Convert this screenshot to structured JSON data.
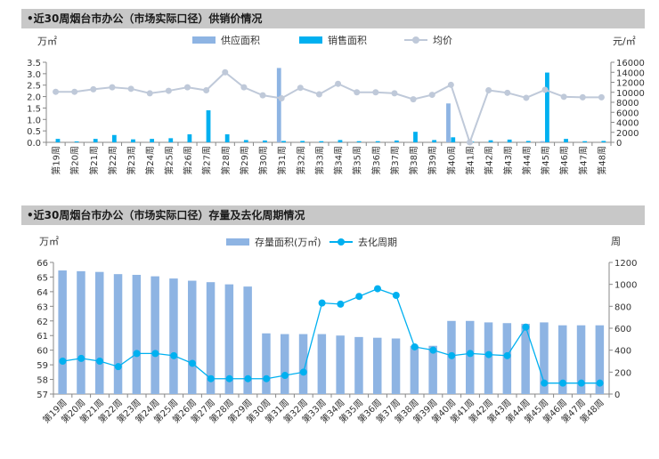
{
  "chart_data": [
    {
      "type": "bar",
      "title": "•近30周烟台市办公（市场实际口径）供销价情况",
      "left_unit": "万㎡",
      "right_unit": "元/㎡",
      "categories": [
        "第19周",
        "第20周",
        "第21周",
        "第22周",
        "第23周",
        "第24周",
        "第25周",
        "第26周",
        "第27周",
        "第28周",
        "第29周",
        "第30周",
        "第31周",
        "第32周",
        "第33周",
        "第34周",
        "第35周",
        "第36周",
        "第37周",
        "第38周",
        "第39周",
        "第40周",
        "第41周",
        "第42周",
        "第43周",
        "第44周",
        "第45周",
        "第46周",
        "第47周",
        "第48周"
      ],
      "left_ticks": [
        "0.0",
        "0.5",
        "1.0",
        "1.5",
        "2.0",
        "2.5",
        "3.0",
        "3.5"
      ],
      "right_ticks": [
        "0",
        "2000",
        "4000",
        "6000",
        "8000",
        "10000",
        "12000",
        "14000",
        "16000"
      ],
      "ylim_left": [
        0,
        3.5
      ],
      "ylim_right": [
        0,
        16000
      ],
      "grid": false,
      "legend_position": "top-center",
      "series": [
        {
          "name": "供应面积",
          "kind": "bar",
          "axis": "left",
          "color": "#8eb4e3",
          "values": [
            0,
            0,
            0,
            0,
            0,
            0,
            0,
            0,
            0,
            0,
            0,
            0,
            3.25,
            0,
            0,
            0,
            0,
            0,
            0,
            0,
            0,
            1.7,
            0,
            0,
            0,
            0,
            0.05,
            0,
            0,
            0
          ]
        },
        {
          "name": "销售面积",
          "kind": "bar",
          "axis": "left",
          "color": "#00b0f0",
          "values": [
            0.15,
            0.04,
            0.15,
            0.32,
            0.13,
            0.15,
            0.18,
            0.35,
            1.4,
            0.35,
            0.1,
            0.08,
            0.06,
            0.06,
            0.05,
            0.1,
            0.05,
            0.05,
            0.08,
            0.46,
            0.1,
            0.22,
            0.03,
            0.09,
            0.12,
            0.06,
            3.05,
            0.15,
            0.05,
            0.06
          ]
        },
        {
          "name": "均价",
          "kind": "line",
          "axis": "right",
          "color": "#bfc9d9",
          "values": [
            10100,
            10100,
            10600,
            11000,
            10700,
            9800,
            10300,
            11000,
            10400,
            14000,
            11000,
            9400,
            8800,
            10900,
            9600,
            11700,
            10000,
            10000,
            9800,
            8600,
            9500,
            11500,
            0,
            10400,
            9900,
            8900,
            10500,
            9100,
            9000,
            9000
          ]
        }
      ]
    },
    {
      "type": "bar",
      "title": "•近30周烟台市办公（市场实际口径）存量及去化周期情况",
      "left_unit": "万㎡",
      "right_unit": "周",
      "categories": [
        "第19周",
        "第20周",
        "第21周",
        "第22周",
        "第23周",
        "第24周",
        "第25周",
        "第26周",
        "第27周",
        "第28周",
        "第29周",
        "第30周",
        "第31周",
        "第32周",
        "第33周",
        "第34周",
        "第35周",
        "第36周",
        "第37周",
        "第38周",
        "第39周",
        "第40周",
        "第41周",
        "第42周",
        "第43周",
        "第44周",
        "第45周",
        "第46周",
        "第47周",
        "第48周"
      ],
      "left_ticks": [
        "57",
        "58",
        "59",
        "60",
        "61",
        "62",
        "63",
        "64",
        "65",
        "66"
      ],
      "right_ticks": [
        "0",
        "200",
        "400",
        "600",
        "800",
        "1000",
        "1200"
      ],
      "ylim_left": [
        57,
        66
      ],
      "ylim_right": [
        0,
        1200
      ],
      "grid": false,
      "legend_position": "top-center",
      "series": [
        {
          "name": "存量面积(万㎡)",
          "kind": "bar",
          "axis": "left",
          "color": "#8eb4e3",
          "values": [
            65.45,
            65.4,
            65.35,
            65.2,
            65.15,
            65.05,
            64.9,
            64.75,
            64.65,
            64.5,
            64.35,
            61.15,
            61.1,
            61.1,
            61.1,
            61.0,
            60.9,
            60.85,
            60.8,
            60.3,
            60.3,
            62.0,
            62.0,
            61.9,
            61.85,
            61.8,
            61.9,
            61.7,
            61.7,
            61.7
          ]
        },
        {
          "name": "去化周期",
          "kind": "line",
          "axis": "right",
          "color": "#00b0f0",
          "values": [
            300,
            325,
            300,
            250,
            370,
            370,
            350,
            280,
            140,
            140,
            140,
            140,
            170,
            200,
            830,
            820,
            890,
            960,
            900,
            430,
            400,
            350,
            370,
            360,
            350,
            610,
            100,
            100,
            100,
            100
          ]
        }
      ]
    }
  ]
}
